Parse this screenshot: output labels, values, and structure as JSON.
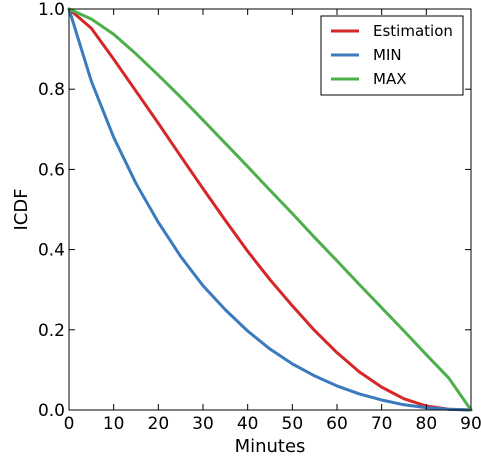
{
  "chart_data": {
    "type": "line",
    "xlabel": "Minutes",
    "ylabel": "ICDF",
    "xlim": [
      0,
      90
    ],
    "ylim": [
      0.0,
      1.0
    ],
    "x_ticks": [
      "0",
      "10",
      "20",
      "30",
      "40",
      "50",
      "60",
      "70",
      "80",
      "90"
    ],
    "y_ticks": [
      "0.0",
      "0.2",
      "0.4",
      "0.6",
      "0.8",
      "1.0"
    ],
    "grid": false,
    "legend_position": "top-right",
    "x": [
      0,
      5,
      10,
      15,
      20,
      25,
      30,
      35,
      40,
      45,
      50,
      55,
      60,
      65,
      70,
      75,
      80,
      85,
      90
    ],
    "series": [
      {
        "name": "Estimation",
        "color": "#d62728",
        "values": [
          1.0,
          0.952,
          0.875,
          0.795,
          0.715,
          0.633,
          0.552,
          0.473,
          0.396,
          0.325,
          0.26,
          0.198,
          0.143,
          0.095,
          0.057,
          0.028,
          0.01,
          0.002,
          0.0
        ]
      },
      {
        "name": "MIN",
        "color": "#3b7bbd",
        "values": [
          1.0,
          0.82,
          0.68,
          0.565,
          0.468,
          0.383,
          0.31,
          0.25,
          0.197,
          0.152,
          0.115,
          0.085,
          0.06,
          0.04,
          0.025,
          0.013,
          0.006,
          0.002,
          0.0
        ]
      },
      {
        "name": "MAX",
        "color": "#4daf4a",
        "values": [
          1.0,
          0.975,
          0.937,
          0.888,
          0.835,
          0.78,
          0.723,
          0.665,
          0.607,
          0.548,
          0.49,
          0.43,
          0.372,
          0.313,
          0.255,
          0.197,
          0.138,
          0.08,
          0.0
        ]
      }
    ]
  }
}
